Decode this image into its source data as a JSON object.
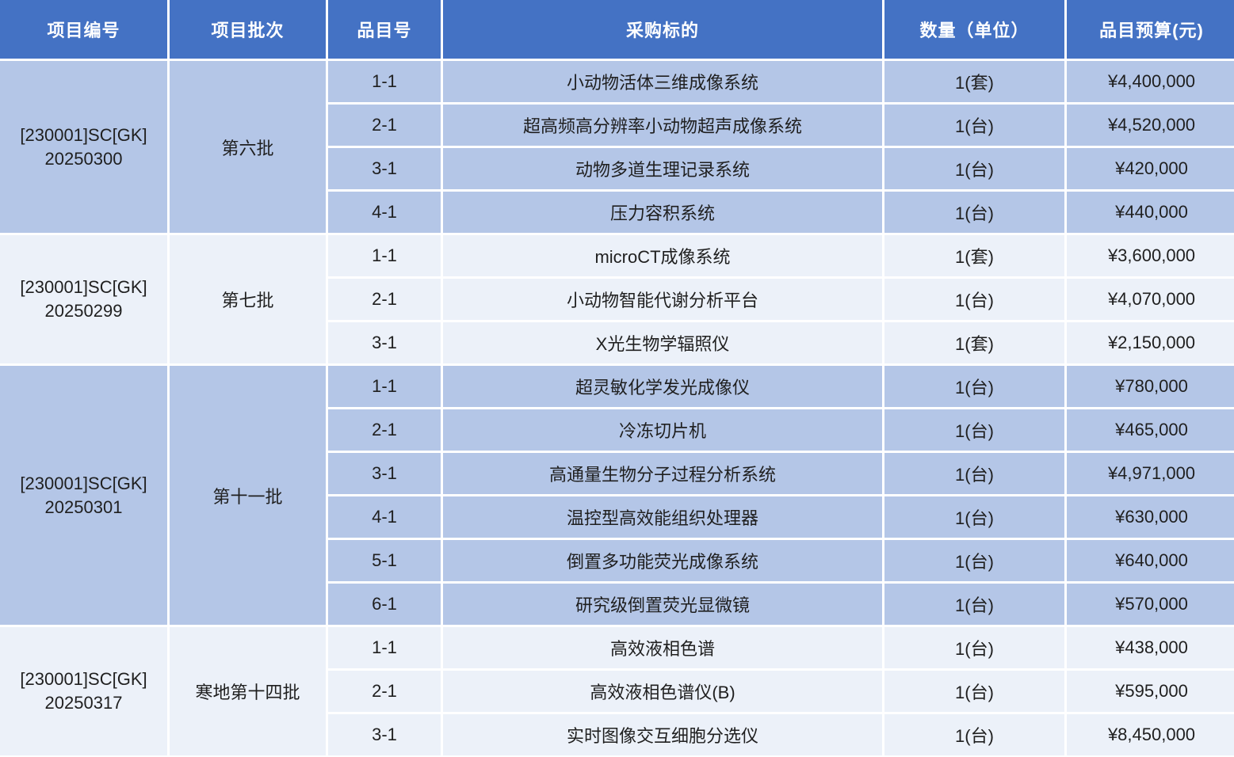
{
  "colors": {
    "header_bg": "#4472C4",
    "header_text": "#FFFFFF",
    "band_dark": "#B4C6E7",
    "band_light": "#ECF1F9",
    "gridline": "#FFFFFF",
    "body_text": "#1F1F1F"
  },
  "header": {
    "project_id": "项目编号",
    "batch": "项目批次",
    "item_no": "品目号",
    "target": "采购标的",
    "quantity": "数量（单位）",
    "budget": "品目预算(元)"
  },
  "groups": [
    {
      "project_id_line1": "[230001]SC[GK]",
      "project_id_line2": "20250300",
      "batch": "第六批",
      "items": [
        {
          "no": "1-1",
          "target": "小动物活体三维成像系统",
          "qty": "1(套)",
          "budget": "¥4,400,000"
        },
        {
          "no": "2-1",
          "target": "超高频高分辨率小动物超声成像系统",
          "qty": "1(台)",
          "budget": "¥4,520,000"
        },
        {
          "no": "3-1",
          "target": "动物多道生理记录系统",
          "qty": "1(台)",
          "budget": "¥420,000"
        },
        {
          "no": "4-1",
          "target": "压力容积系统",
          "qty": "1(台)",
          "budget": "¥440,000"
        }
      ]
    },
    {
      "project_id_line1": "[230001]SC[GK]",
      "project_id_line2": "20250299",
      "batch": "第七批",
      "items": [
        {
          "no": "1-1",
          "target": "microCT成像系统",
          "qty": "1(套)",
          "budget": "¥3,600,000"
        },
        {
          "no": "2-1",
          "target": "小动物智能代谢分析平台",
          "qty": "1(台)",
          "budget": "¥4,070,000"
        },
        {
          "no": "3-1",
          "target": "X光生物学辐照仪",
          "qty": "1(套)",
          "budget": "¥2,150,000"
        }
      ]
    },
    {
      "project_id_line1": "[230001]SC[GK]",
      "project_id_line2": "20250301",
      "batch": "第十一批",
      "items": [
        {
          "no": "1-1",
          "target": "超灵敏化学发光成像仪",
          "qty": "1(台)",
          "budget": "¥780,000"
        },
        {
          "no": "2-1",
          "target": "冷冻切片机",
          "qty": "1(台)",
          "budget": "¥465,000"
        },
        {
          "no": "3-1",
          "target": "高通量生物分子过程分析系统",
          "qty": "1(台)",
          "budget": "¥4,971,000"
        },
        {
          "no": "4-1",
          "target": "温控型高效能组织处理器",
          "qty": "1(台)",
          "budget": "¥630,000"
        },
        {
          "no": "5-1",
          "target": "倒置多功能荧光成像系统",
          "qty": "1(台)",
          "budget": "¥640,000"
        },
        {
          "no": "6-1",
          "target": "研究级倒置荧光显微镜",
          "qty": "1(台)",
          "budget": "¥570,000"
        }
      ]
    },
    {
      "project_id_line1": "[230001]SC[GK]",
      "project_id_line2": "20250317",
      "batch": "寒地第十四批",
      "items": [
        {
          "no": "1-1",
          "target": "高效液相色谱",
          "qty": "1(台)",
          "budget": "¥438,000"
        },
        {
          "no": "2-1",
          "target": "高效液相色谱仪(B)",
          "qty": "1(台)",
          "budget": "¥595,000"
        },
        {
          "no": "3-1",
          "target": "实时图像交互细胞分选仪",
          "qty": "1(台)",
          "budget": "¥8,450,000"
        }
      ]
    }
  ]
}
